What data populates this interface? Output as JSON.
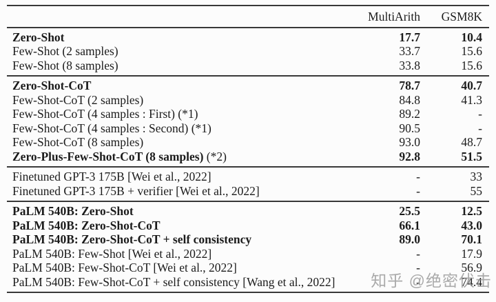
{
  "table": {
    "columns": {
      "col1": "MultiArith",
      "col2": "GSM8K"
    },
    "sections": [
      {
        "rows": [
          {
            "label": "Zero-Shot",
            "multiarith": "17.7",
            "gsm8k": "10.4"
          },
          {
            "label": "Few-Shot (2 samples)",
            "multiarith": "33.7",
            "gsm8k": "15.6"
          },
          {
            "label": "Few-Shot (8 samples)",
            "multiarith": "33.8",
            "gsm8k": "15.6"
          }
        ]
      },
      {
        "rows": [
          {
            "label": "Zero-Shot-CoT",
            "multiarith": "78.7",
            "gsm8k": "40.7"
          },
          {
            "label": "Few-Shot-CoT (2 samples)",
            "multiarith": "84.8",
            "gsm8k": "41.3"
          },
          {
            "label": "Few-Shot-CoT (4 samples : First) (*1)",
            "multiarith": "89.2",
            "gsm8k": "-"
          },
          {
            "label": "Few-Shot-CoT (4 samples : Second) (*1)",
            "multiarith": "90.5",
            "gsm8k": "-"
          },
          {
            "label": "Few-Shot-CoT (8 samples)",
            "multiarith": "93.0",
            "gsm8k": "48.7"
          },
          {
            "label": "Zero-Plus-Few-Shot-CoT (8 samples)",
            "suffix": " (*2)",
            "multiarith": "92.8",
            "gsm8k": "51.5"
          }
        ]
      },
      {
        "rows": [
          {
            "label": "Finetuned GPT-3 175B [Wei et al., 2022]",
            "multiarith": "-",
            "gsm8k": "33"
          },
          {
            "label": "Finetuned GPT-3 175B + verifier [Wei et al., 2022]",
            "multiarith": "-",
            "gsm8k": "55"
          }
        ]
      },
      {
        "rows": [
          {
            "label": "PaLM 540B: Zero-Shot",
            "multiarith": "25.5",
            "gsm8k": "12.5"
          },
          {
            "label": "PaLM 540B: Zero-Shot-CoT",
            "multiarith": "66.1",
            "gsm8k": "43.0"
          },
          {
            "label": "PaLM 540B: Zero-Shot-CoT + self consistency",
            "multiarith": "89.0",
            "gsm8k": "70.1"
          },
          {
            "label": "PaLM 540B: Few-Shot [Wei et al., 2022]",
            "multiarith": "-",
            "gsm8k": "17.9"
          },
          {
            "label": "PaLM 540B: Few-Shot-CoT [Wei et al., 2022]",
            "multiarith": "-",
            "gsm8k": "56.9"
          },
          {
            "label": "PaLM 540B: Few-Shot-CoT + self consistency [Wang et al., 2022]",
            "multiarith": "-",
            "gsm8k": "74.4"
          }
        ]
      }
    ]
  },
  "watermark": {
    "text": "知乎 @绝密伏击"
  },
  "colors": {
    "text": "#1b1b1b",
    "rule": "#383838",
    "watermark": "#979797",
    "background": "#fcfcfc"
  }
}
